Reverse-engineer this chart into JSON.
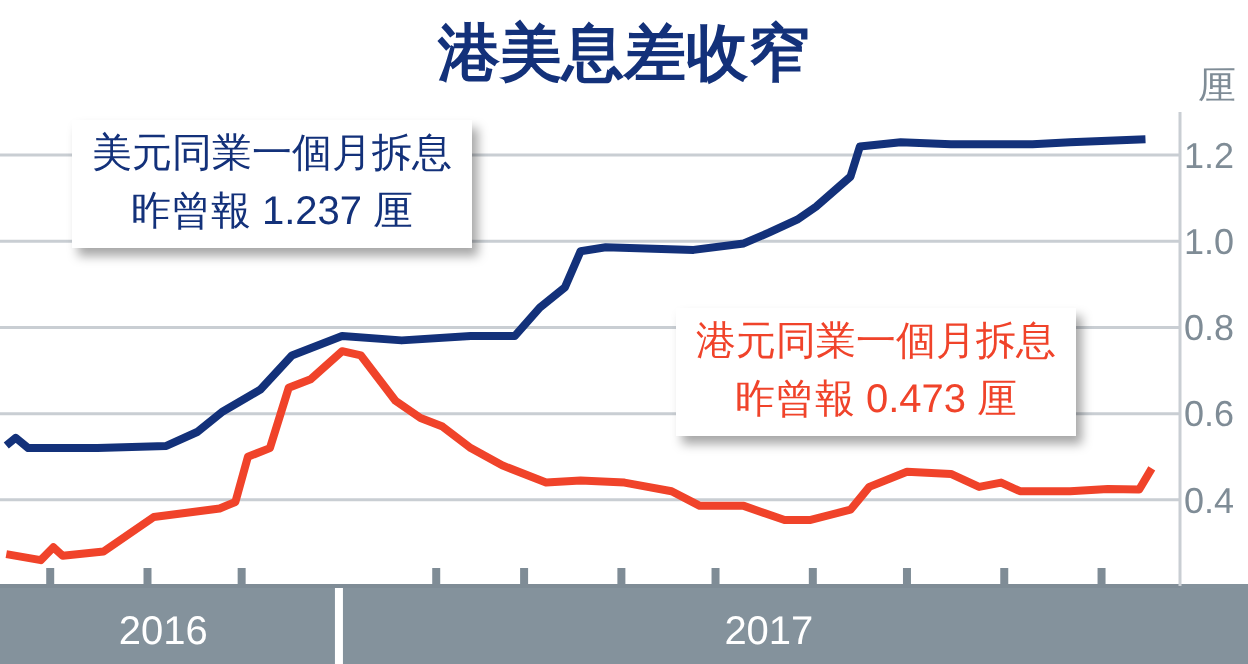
{
  "chart_data": {
    "type": "line",
    "title": "港美息差收窄",
    "ylabel": "厘",
    "xlim": [
      "2016-09-15",
      "2017-09-26"
    ],
    "xticks": [
      {
        "value": "2016-10-01",
        "label": null
      },
      {
        "value": "2016-11-01",
        "label": null
      },
      {
        "value": "2016-11-06",
        "label": "2016"
      },
      {
        "value": "2016-12-01",
        "label": null
      },
      {
        "value": "2017-02-01",
        "label": null
      },
      {
        "value": "2017-03-01",
        "label": null
      },
      {
        "value": "2017-04-01",
        "label": null
      },
      {
        "value": "2017-05-01",
        "label": null
      },
      {
        "value": "2017-05-18",
        "label": "2017"
      },
      {
        "value": "2017-06-01",
        "label": null
      },
      {
        "value": "2017-07-01",
        "label": null
      },
      {
        "value": "2017-08-01",
        "label": null
      },
      {
        "value": "2017-09-01",
        "label": null
      }
    ],
    "ylim": [
      0.2,
      1.3
    ],
    "yticks": [
      0.4,
      0.6,
      0.8,
      {
        "value": 1.0,
        "label": "1.0"
      },
      1.2
    ],
    "grid": "y",
    "legend": false,
    "marker": "none",
    "series": [
      {
        "name": "美元同業一個月拆息",
        "color": "#13317a",
        "x": [
          "2016-09-17",
          "2016-09-20",
          "2016-09-24",
          "2016-10-16",
          "2016-11-07",
          "2016-11-17",
          "2016-11-25",
          "2016-12-07",
          "2016-12-17",
          "2017-01-02",
          "2017-01-21",
          "2017-02-12",
          "2017-02-26",
          "2017-03-06",
          "2017-03-14",
          "2017-03-19",
          "2017-03-27",
          "2017-04-24",
          "2017-05-10",
          "2017-05-18",
          "2017-05-27",
          "2017-06-02",
          "2017-06-13",
          "2017-06-16",
          "2017-06-29",
          "2017-07-15",
          "2017-08-10",
          "2017-08-22",
          "2017-09-15"
        ],
        "values": [
          0.526,
          0.544,
          0.52,
          0.52,
          0.525,
          0.558,
          0.605,
          0.656,
          0.735,
          0.78,
          0.77,
          0.78,
          0.78,
          0.846,
          0.893,
          0.977,
          0.986,
          0.98,
          0.995,
          1.02,
          1.05,
          1.08,
          1.15,
          1.22,
          1.23,
          1.225,
          1.225,
          1.23,
          1.237
        ]
      },
      {
        "name": "港元同業一個月拆息",
        "color": "#f0432a",
        "x": [
          "2016-09-17",
          "2016-09-28",
          "2016-10-02",
          "2016-10-05",
          "2016-10-18",
          "2016-11-03",
          "2016-11-24",
          "2016-11-29",
          "2016-12-03",
          "2016-12-10",
          "2016-12-16",
          "2016-12-23",
          "2017-01-02",
          "2017-01-08",
          "2017-01-19",
          "2017-01-27",
          "2017-02-03",
          "2017-02-12",
          "2017-02-22",
          "2017-03-08",
          "2017-03-19",
          "2017-04-02",
          "2017-04-17",
          "2017-04-26",
          "2017-05-10",
          "2017-05-23",
          "2017-05-31",
          "2017-06-13",
          "2017-06-19",
          "2017-07-01",
          "2017-07-15",
          "2017-07-24",
          "2017-07-31",
          "2017-08-06",
          "2017-08-22",
          "2017-09-03",
          "2017-09-13",
          "2017-09-17"
        ],
        "values": [
          0.274,
          0.26,
          0.29,
          0.27,
          0.28,
          0.36,
          0.38,
          0.395,
          0.5,
          0.52,
          0.66,
          0.68,
          0.745,
          0.735,
          0.63,
          0.59,
          0.57,
          0.52,
          0.48,
          0.44,
          0.445,
          0.44,
          0.42,
          0.386,
          0.386,
          0.353,
          0.353,
          0.377,
          0.43,
          0.465,
          0.46,
          0.43,
          0.44,
          0.42,
          0.42,
          0.425,
          0.424,
          0.473
        ]
      }
    ],
    "annotations": [
      "昨曾報 1.237 厘",
      "昨曾報 0.473 厘"
    ]
  }
}
